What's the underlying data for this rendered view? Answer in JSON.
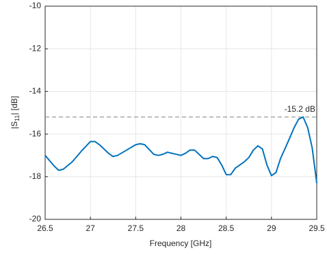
{
  "chart_data": {
    "type": "line",
    "xlabel": "Frequency [GHz]",
    "ylabel": [
      "|S",
      "11",
      "| [dB]"
    ],
    "x": [
      26.5,
      26.6,
      26.65,
      26.7,
      26.8,
      26.9,
      27.0,
      27.05,
      27.1,
      27.2,
      27.25,
      27.3,
      27.4,
      27.5,
      27.55,
      27.6,
      27.7,
      27.75,
      27.8,
      27.85,
      27.9,
      28.0,
      28.05,
      28.1,
      28.15,
      28.2,
      28.25,
      28.3,
      28.35,
      28.4,
      28.45,
      28.5,
      28.55,
      28.6,
      28.7,
      28.75,
      28.8,
      28.85,
      28.9,
      28.95,
      29.0,
      29.05,
      29.1,
      29.2,
      29.25,
      29.3,
      29.35,
      29.4,
      29.45,
      29.5
    ],
    "series": [
      {
        "color": "#0072bd",
        "values": [
          -17.0,
          -17.5,
          -17.7,
          -17.65,
          -17.3,
          -16.8,
          -16.35,
          -16.35,
          -16.5,
          -16.9,
          -17.05,
          -17.0,
          -16.75,
          -16.5,
          -16.45,
          -16.5,
          -16.95,
          -17.0,
          -16.95,
          -16.85,
          -16.9,
          -17.0,
          -16.9,
          -16.75,
          -16.75,
          -16.95,
          -17.15,
          -17.15,
          -17.05,
          -17.1,
          -17.45,
          -17.9,
          -17.9,
          -17.6,
          -17.3,
          -17.1,
          -16.75,
          -16.55,
          -16.7,
          -17.45,
          -17.95,
          -17.8,
          -17.15,
          -16.2,
          -15.7,
          -15.3,
          -15.2,
          -15.7,
          -16.65,
          -18.3
        ]
      }
    ],
    "reference_line": {
      "value": -15.2,
      "label": "-15.2 dB",
      "color": "#808080"
    },
    "xlim": [
      26.5,
      29.5
    ],
    "xticks": [
      26.5,
      27,
      27.5,
      28,
      28.5,
      29,
      29.5
    ],
    "ylim": [
      -20,
      -10
    ],
    "yticks": [
      -20,
      -18,
      -16,
      -14,
      -12,
      -10
    ],
    "grid": true
  }
}
